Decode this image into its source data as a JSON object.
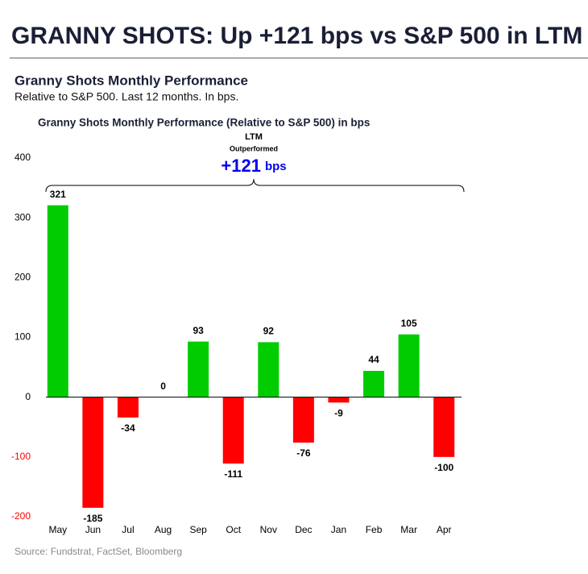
{
  "header": {
    "title": "GRANNY SHOTS: Up +121 bps vs S&P 500 in LTM"
  },
  "subtitle": "Granny Shots Monthly Performance",
  "description": "Relative to S&P 500. Last 12 months. In bps.",
  "source": "Source: Fundstrat, FactSet, Bloomberg",
  "chart_data": {
    "type": "bar",
    "title": "Granny Shots Monthly Performance (Relative to S&P 500) in bps",
    "annotation": {
      "label": "LTM",
      "sublabel": "Outperformed",
      "value": "+121",
      "unit": "bps",
      "color": "#0000ee"
    },
    "categories": [
      "May",
      "Jun",
      "Jul",
      "Aug",
      "Sep",
      "Oct",
      "Nov",
      "Dec",
      "Jan",
      "Feb",
      "Mar",
      "Apr"
    ],
    "values": [
      321,
      -185,
      -34,
      0,
      93,
      -111,
      92,
      -76,
      -9,
      44,
      105,
      -100
    ],
    "positive_color": "#00cc00",
    "negative_color": "#ff0000",
    "negative_tick_color": "#ff0000",
    "ylim": [
      -200,
      400
    ],
    "yticks": [
      -200,
      -100,
      0,
      100,
      200,
      300,
      400
    ],
    "grid": false
  }
}
